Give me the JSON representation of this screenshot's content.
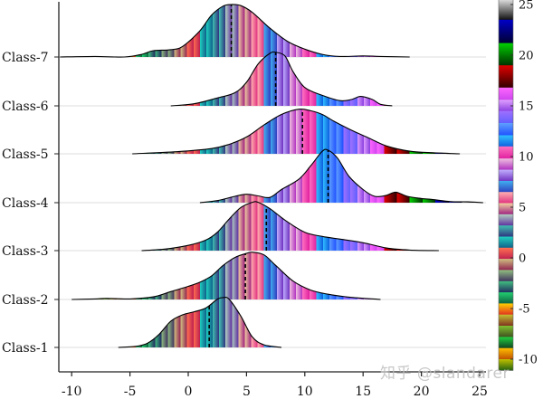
{
  "chart_data": {
    "type": "ridgeline",
    "title": "",
    "xlabel": "",
    "ylabel": "",
    "xlim": [
      -11,
      25.5
    ],
    "x_ticks": [
      -10,
      -5,
      0,
      5,
      10,
      15,
      20,
      25
    ],
    "categories": [
      "Class-1",
      "Class-2",
      "Class-3",
      "Class-4",
      "Class-5",
      "Class-6",
      "Class-7"
    ],
    "grid": "horizontal baselines per class",
    "fill": "vertical stripes colored by x value using the colorbar palette",
    "median_line": "dashed black vertical line",
    "series": [
      {
        "name": "Class-1",
        "median": 1.8,
        "density": [
          [
            -6,
            0
          ],
          [
            -4.5,
            0.02
          ],
          [
            -3.5,
            0.08
          ],
          [
            -2.5,
            0.25
          ],
          [
            -1.5,
            0.5
          ],
          [
            -0.5,
            0.62
          ],
          [
            0.5,
            0.68
          ],
          [
            1.5,
            0.75
          ],
          [
            2.5,
            0.92
          ],
          [
            3.0,
            0.95
          ],
          [
            3.5,
            0.92
          ],
          [
            4.5,
            0.6
          ],
          [
            5.5,
            0.2
          ],
          [
            6.5,
            0.05
          ],
          [
            8,
            0
          ]
        ]
      },
      {
        "name": "Class-2",
        "median": 4.9,
        "density": [
          [
            -10,
            0
          ],
          [
            -8,
            0.01
          ],
          [
            -7,
            0.02
          ],
          [
            -5,
            0.01
          ],
          [
            -3,
            0.05
          ],
          [
            -1.5,
            0.15
          ],
          [
            0,
            0.25
          ],
          [
            1,
            0.33
          ],
          [
            2,
            0.45
          ],
          [
            3,
            0.65
          ],
          [
            4,
            0.8
          ],
          [
            5,
            0.88
          ],
          [
            5.5,
            0.9
          ],
          [
            6.5,
            0.85
          ],
          [
            7.5,
            0.65
          ],
          [
            9,
            0.35
          ],
          [
            10.5,
            0.18
          ],
          [
            12,
            0.1
          ],
          [
            14,
            0.04
          ],
          [
            16.5,
            0
          ]
        ]
      },
      {
        "name": "Class-3",
        "median": 6.7,
        "density": [
          [
            -4,
            0
          ],
          [
            -2,
            0.03
          ],
          [
            0,
            0.1
          ],
          [
            1.5,
            0.2
          ],
          [
            2.5,
            0.35
          ],
          [
            3.5,
            0.6
          ],
          [
            4.5,
            0.82
          ],
          [
            5.5,
            0.92
          ],
          [
            6,
            0.92
          ],
          [
            7,
            0.8
          ],
          [
            8.5,
            0.55
          ],
          [
            10,
            0.35
          ],
          [
            11.5,
            0.27
          ],
          [
            13,
            0.22
          ],
          [
            15,
            0.15
          ],
          [
            17,
            0.05
          ],
          [
            19,
            0.01
          ],
          [
            21.5,
            0
          ]
        ]
      },
      {
        "name": "Class-4",
        "median": 12.0,
        "density": [
          [
            1,
            0
          ],
          [
            2.5,
            0.04
          ],
          [
            4,
            0.12
          ],
          [
            5,
            0.16
          ],
          [
            6,
            0.13
          ],
          [
            7,
            0.1
          ],
          [
            8,
            0.25
          ],
          [
            9.5,
            0.45
          ],
          [
            10.5,
            0.7
          ],
          [
            11.5,
            0.98
          ],
          [
            12,
            1.0
          ],
          [
            12.8,
            0.85
          ],
          [
            13.8,
            0.5
          ],
          [
            15,
            0.25
          ],
          [
            16,
            0.12
          ],
          [
            17,
            0.14
          ],
          [
            17.8,
            0.2
          ],
          [
            18.8,
            0.12
          ],
          [
            20,
            0.08
          ],
          [
            21,
            0.06
          ],
          [
            22.5,
            0.02
          ],
          [
            24,
            0.015
          ],
          [
            25.3,
            0
          ]
        ]
      },
      {
        "name": "Class-5",
        "median": 9.8,
        "density": [
          [
            -4.8,
            0
          ],
          [
            -1,
            0.04
          ],
          [
            2,
            0.1
          ],
          [
            3.5,
            0.18
          ],
          [
            5,
            0.32
          ],
          [
            6.5,
            0.55
          ],
          [
            8,
            0.75
          ],
          [
            9.5,
            0.85
          ],
          [
            10.5,
            0.82
          ],
          [
            11.5,
            0.75
          ],
          [
            12.5,
            0.62
          ],
          [
            14,
            0.45
          ],
          [
            15.5,
            0.3
          ],
          [
            17,
            0.15
          ],
          [
            19,
            0.05
          ],
          [
            21,
            0.02
          ],
          [
            23.3,
            0
          ]
        ]
      },
      {
        "name": "Class-6",
        "median": 7.5,
        "density": [
          [
            -1.5,
            0
          ],
          [
            0.5,
            0.04
          ],
          [
            2.5,
            0.15
          ],
          [
            4,
            0.25
          ],
          [
            5,
            0.45
          ],
          [
            6,
            0.8
          ],
          [
            7,
            1.0
          ],
          [
            7.5,
            1.02
          ],
          [
            8.3,
            0.95
          ],
          [
            9,
            0.65
          ],
          [
            10,
            0.35
          ],
          [
            11.5,
            0.2
          ],
          [
            13,
            0.1
          ],
          [
            14,
            0.12
          ],
          [
            14.8,
            0.18
          ],
          [
            15.8,
            0.12
          ],
          [
            16.5,
            0.03
          ],
          [
            17.5,
            0
          ]
        ]
      },
      {
        "name": "Class-7",
        "median": 3.7,
        "density": [
          [
            -11,
            0
          ],
          [
            -8,
            0.01
          ],
          [
            -5.5,
            0
          ],
          [
            -4,
            0.05
          ],
          [
            -3,
            0.12
          ],
          [
            -1.5,
            0.14
          ],
          [
            -0.5,
            0.2
          ],
          [
            1,
            0.5
          ],
          [
            2,
            0.8
          ],
          [
            3,
            0.97
          ],
          [
            3.7,
            1.0
          ],
          [
            4.5,
            0.98
          ],
          [
            5.5,
            0.85
          ],
          [
            7,
            0.55
          ],
          [
            8.5,
            0.3
          ],
          [
            10,
            0.15
          ],
          [
            11.5,
            0.05
          ],
          [
            13,
            0.01
          ],
          [
            15,
            0.02
          ],
          [
            16.5,
            0.01
          ],
          [
            19,
            0
          ]
        ]
      }
    ]
  },
  "legend": {
    "type": "colorbar",
    "ticks": [
      25,
      20,
      15,
      10,
      5,
      0,
      -5,
      -10
    ],
    "range": [
      -11,
      25.5
    ],
    "bands": [
      {
        "from": 23.5,
        "to": 25.6,
        "color": "#e8e8e8",
        "to_color": "#101010"
      },
      {
        "from": 21.2,
        "to": 23.5,
        "color": "#0000c8",
        "to_color": "#000030"
      },
      {
        "from": 19.0,
        "to": 21.2,
        "color": "#00d000",
        "to_color": "#003000"
      },
      {
        "from": 16.8,
        "to": 19.0,
        "color": "#e00000",
        "to_color": "#300000"
      },
      {
        "from": 15.6,
        "to": 16.8,
        "color": "#ff66ff",
        "to_color": "#cc44ee"
      },
      {
        "from": 14.5,
        "to": 15.6,
        "color": "#e0a0ff",
        "to_color": "#8a40e0"
      },
      {
        "from": 13.3,
        "to": 14.5,
        "color": "#a070ff",
        "to_color": "#6060ff"
      },
      {
        "from": 12.1,
        "to": 13.3,
        "color": "#60a0ff",
        "to_color": "#2050ff"
      },
      {
        "from": 11.0,
        "to": 12.1,
        "color": "#30c0ff",
        "to_color": "#1060e0"
      },
      {
        "from": 9.8,
        "to": 11.0,
        "color": "#ff70c0",
        "to_color": "#e020a0"
      },
      {
        "from": 8.7,
        "to": 9.8,
        "color": "#f0c0e0",
        "to_color": "#b030c0"
      },
      {
        "from": 7.6,
        "to": 8.7,
        "color": "#c0b0ff",
        "to_color": "#7030c0"
      },
      {
        "from": 6.5,
        "to": 7.6,
        "color": "#40b0f0",
        "to_color": "#3040c0"
      },
      {
        "from": 5.4,
        "to": 6.5,
        "color": "#ffb0b0",
        "to_color": "#e03080"
      },
      {
        "from": 4.3,
        "to": 5.4,
        "color": "#f0d0a0",
        "to_color": "#a02080"
      },
      {
        "from": 3.2,
        "to": 4.3,
        "color": "#b0d0c0",
        "to_color": "#6030a0"
      },
      {
        "from": 2.1,
        "to": 3.2,
        "color": "#40c0b0",
        "to_color": "#303080"
      },
      {
        "from": 1.0,
        "to": 2.1,
        "color": "#20d0c0",
        "to_color": "#10608a"
      },
      {
        "from": -0.1,
        "to": 1.0,
        "color": "#ff7050",
        "to_color": "#c02050"
      },
      {
        "from": -1.2,
        "to": -0.1,
        "color": "#d0c080",
        "to_color": "#902050"
      },
      {
        "from": -2.3,
        "to": -1.2,
        "color": "#90c080",
        "to_color": "#403060"
      },
      {
        "from": -3.4,
        "to": -2.3,
        "color": "#40c080",
        "to_color": "#202a60"
      },
      {
        "from": -4.5,
        "to": -3.4,
        "color": "#20d070",
        "to_color": "#106040"
      },
      {
        "from": -5.6,
        "to": -4.5,
        "color": "#ffd000",
        "to_color": "#e03020"
      },
      {
        "from": -6.7,
        "to": -5.6,
        "color": "#c0c030",
        "to_color": "#803020"
      },
      {
        "from": -7.8,
        "to": -6.7,
        "color": "#80c030",
        "to_color": "#405020"
      },
      {
        "from": -8.9,
        "to": -7.8,
        "color": "#20d040",
        "to_color": "#104020"
      },
      {
        "from": -10.0,
        "to": -8.9,
        "color": "#ffc000",
        "to_color": "#c05000"
      },
      {
        "from": -11.1,
        "to": -10.0,
        "color": "#c0c000",
        "to_color": "#206010"
      }
    ]
  },
  "watermark": "知乎 @slandarer"
}
